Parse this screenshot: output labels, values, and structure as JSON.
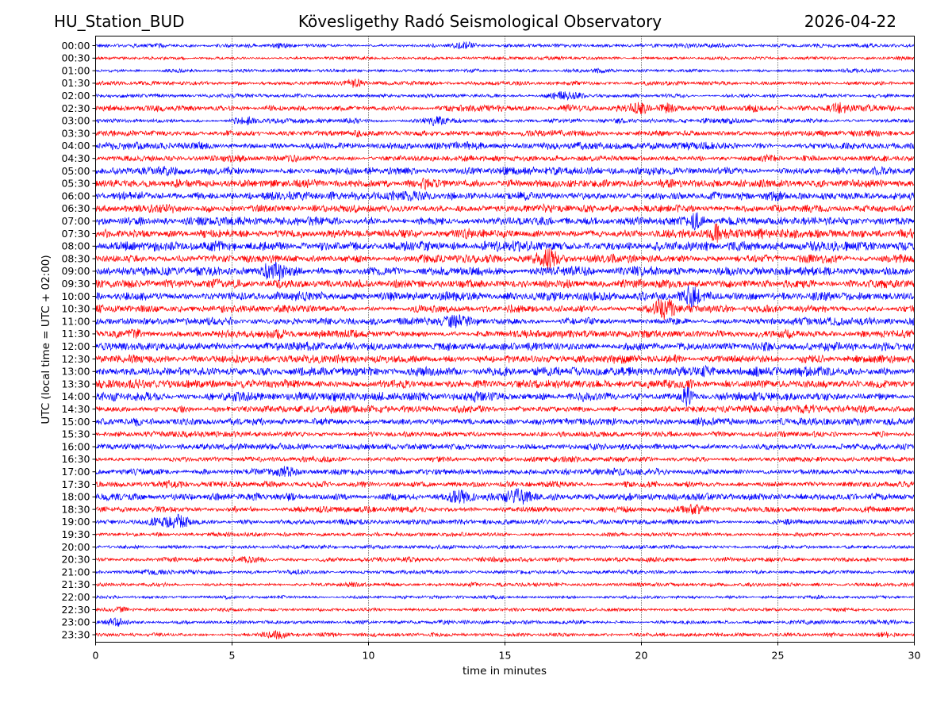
{
  "header": {
    "station": "HU_Station_BUD",
    "observatory": "Kövesligethy Radó Seismological Observatory",
    "date": "2026-04-22"
  },
  "chart_data": {
    "type": "line",
    "title": "Kövesligethy Radó Seismological Observatory",
    "xlabel": "time in minutes",
    "ylabel": "UTC (local time = UTC + 02:00)",
    "xlim": [
      0,
      30
    ],
    "xticks": [
      0,
      5,
      10,
      15,
      20,
      25,
      30
    ],
    "grid": "vertical dotted at x ticks",
    "colors": {
      "even_hour": "#0000ff",
      "half_hour": "#ff0000"
    },
    "rows": [
      {
        "label": "00:00",
        "amp": 0.3,
        "events": [
          {
            "t": 13.5,
            "a": 0.8,
            "w": 0.4
          },
          {
            "t": 6.8,
            "a": 0.5,
            "w": 0.4
          },
          {
            "t": 21.5,
            "a": 0.5,
            "w": 0.4
          }
        ]
      },
      {
        "label": "00:30",
        "amp": 0.25,
        "events": []
      },
      {
        "label": "01:00",
        "amp": 0.25,
        "events": [
          {
            "t": 18.5,
            "a": 0.4,
            "w": 0.3
          }
        ]
      },
      {
        "label": "01:30",
        "amp": 0.3,
        "events": [
          {
            "t": 9.5,
            "a": 0.9,
            "w": 0.35
          }
        ]
      },
      {
        "label": "02:00",
        "amp": 0.3,
        "events": [
          {
            "t": 17.2,
            "a": 0.9,
            "w": 0.6
          }
        ]
      },
      {
        "label": "02:30",
        "amp": 0.45,
        "events": [
          {
            "t": 19.9,
            "a": 0.8,
            "w": 0.4
          },
          {
            "t": 27.2,
            "a": 0.8,
            "w": 0.3
          },
          {
            "t": 21.0,
            "a": 0.6,
            "w": 0.3
          }
        ]
      },
      {
        "label": "03:00",
        "amp": 0.35,
        "events": [
          {
            "t": 5.5,
            "a": 0.8,
            "w": 0.4
          },
          {
            "t": 12.5,
            "a": 0.7,
            "w": 0.4
          }
        ]
      },
      {
        "label": "03:30",
        "amp": 0.45,
        "events": []
      },
      {
        "label": "04:00",
        "amp": 0.55,
        "events": []
      },
      {
        "label": "04:30",
        "amp": 0.45,
        "events": []
      },
      {
        "label": "05:00",
        "amp": 0.6,
        "events": []
      },
      {
        "label": "05:30",
        "amp": 0.6,
        "events": []
      },
      {
        "label": "06:00",
        "amp": 0.65,
        "events": []
      },
      {
        "label": "06:30",
        "amp": 0.6,
        "events": []
      },
      {
        "label": "07:00",
        "amp": 0.65,
        "events": [
          {
            "t": 22.0,
            "a": 1.0,
            "w": 0.3
          }
        ]
      },
      {
        "label": "07:30",
        "amp": 0.65,
        "events": [
          {
            "t": 22.7,
            "a": 1.0,
            "w": 0.2
          }
        ]
      },
      {
        "label": "08:00",
        "amp": 0.7,
        "events": []
      },
      {
        "label": "08:30",
        "amp": 0.65,
        "events": [
          {
            "t": 16.5,
            "a": 1.0,
            "w": 0.4
          }
        ]
      },
      {
        "label": "09:00",
        "amp": 0.7,
        "events": [
          {
            "t": 6.5,
            "a": 0.9,
            "w": 0.4
          }
        ]
      },
      {
        "label": "09:30",
        "amp": 0.7,
        "events": []
      },
      {
        "label": "10:00",
        "amp": 0.65,
        "events": [
          {
            "t": 21.8,
            "a": 1.0,
            "w": 0.3
          }
        ]
      },
      {
        "label": "10:30",
        "amp": 0.6,
        "events": [
          {
            "t": 20.8,
            "a": 1.2,
            "w": 0.4
          }
        ]
      },
      {
        "label": "11:00",
        "amp": 0.55,
        "events": [
          {
            "t": 13.3,
            "a": 0.7,
            "w": 0.5
          }
        ]
      },
      {
        "label": "11:30",
        "amp": 0.65,
        "events": []
      },
      {
        "label": "12:00",
        "amp": 0.65,
        "events": []
      },
      {
        "label": "12:30",
        "amp": 0.65,
        "events": []
      },
      {
        "label": "13:00",
        "amp": 0.7,
        "events": []
      },
      {
        "label": "13:30",
        "amp": 0.65,
        "events": []
      },
      {
        "label": "14:00",
        "amp": 0.65,
        "events": [
          {
            "t": 21.7,
            "a": 1.1,
            "w": 0.2
          }
        ]
      },
      {
        "label": "14:30",
        "amp": 0.55,
        "events": []
      },
      {
        "label": "15:00",
        "amp": 0.55,
        "events": []
      },
      {
        "label": "15:30",
        "amp": 0.45,
        "events": []
      },
      {
        "label": "16:00",
        "amp": 0.5,
        "events": []
      },
      {
        "label": "16:30",
        "amp": 0.4,
        "events": []
      },
      {
        "label": "17:00",
        "amp": 0.45,
        "events": [
          {
            "t": 7.0,
            "a": 0.6,
            "w": 0.5
          }
        ]
      },
      {
        "label": "17:30",
        "amp": 0.45,
        "events": []
      },
      {
        "label": "18:00",
        "amp": 0.55,
        "events": [
          {
            "t": 15.5,
            "a": 1.0,
            "w": 0.6
          },
          {
            "t": 13.3,
            "a": 0.7,
            "w": 0.4
          }
        ]
      },
      {
        "label": "18:30",
        "amp": 0.45,
        "events": [
          {
            "t": 22.0,
            "a": 0.7,
            "w": 0.5
          }
        ]
      },
      {
        "label": "19:00",
        "amp": 0.4,
        "events": [
          {
            "t": 3.0,
            "a": 1.2,
            "w": 0.4
          },
          {
            "t": 2.3,
            "a": 0.6,
            "w": 0.3
          }
        ]
      },
      {
        "label": "19:30",
        "amp": 0.3,
        "events": []
      },
      {
        "label": "20:00",
        "amp": 0.3,
        "events": []
      },
      {
        "label": "20:30",
        "amp": 0.35,
        "events": [
          {
            "t": 5.8,
            "a": 0.6,
            "w": 0.4
          }
        ]
      },
      {
        "label": "21:00",
        "amp": 0.3,
        "events": [
          {
            "t": 2.2,
            "a": 0.5,
            "w": 0.4
          }
        ]
      },
      {
        "label": "21:30",
        "amp": 0.3,
        "events": [
          {
            "t": 9.5,
            "a": 0.6,
            "w": 0.2
          }
        ]
      },
      {
        "label": "22:00",
        "amp": 0.25,
        "events": []
      },
      {
        "label": "22:30",
        "amp": 0.25,
        "events": [
          {
            "t": 0.9,
            "a": 0.6,
            "w": 0.3
          }
        ]
      },
      {
        "label": "23:00",
        "amp": 0.3,
        "events": [
          {
            "t": 0.8,
            "a": 1.1,
            "w": 0.4
          }
        ]
      },
      {
        "label": "23:30",
        "amp": 0.3,
        "events": [
          {
            "t": 6.6,
            "a": 1.1,
            "w": 0.4
          },
          {
            "t": 28.9,
            "a": 0.5,
            "w": 0.3
          },
          {
            "t": 27.0,
            "a": 0.5,
            "w": 0.3
          }
        ]
      }
    ]
  }
}
